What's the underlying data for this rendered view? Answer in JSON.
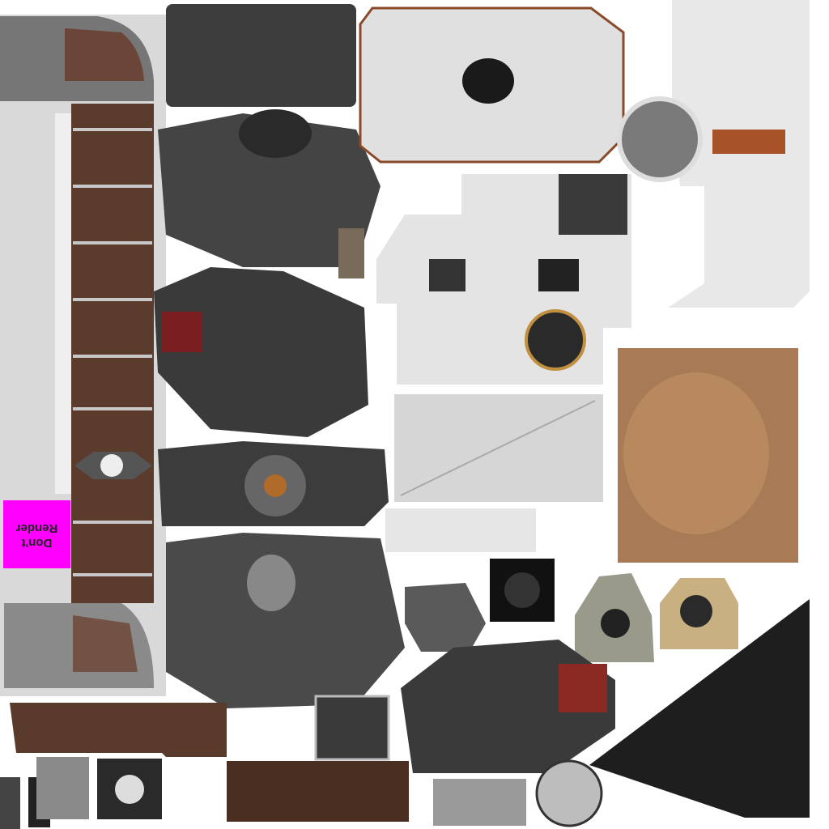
{
  "label": [
    "Don't",
    "Render"
  ]
}
